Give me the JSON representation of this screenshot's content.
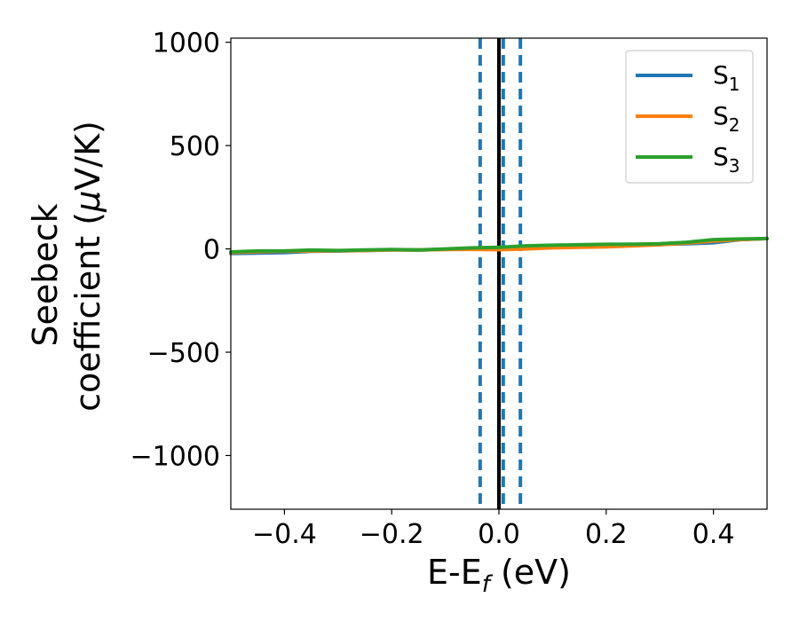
{
  "chart_data": {
    "type": "line",
    "xlabel": {
      "main": "E-E",
      "sub": "f",
      "rest": " (eV)"
    },
    "ylabel": {
      "line1": "Seebeck",
      "line2a": "coefficient  (",
      "mu": "μ",
      "line2b": "V/K)"
    },
    "xlim": [
      -0.5,
      0.5
    ],
    "ylim": [
      -1260,
      1020
    ],
    "xticks": [
      {
        "value": -0.4,
        "label": "−0.4"
      },
      {
        "value": -0.2,
        "label": "−0.2"
      },
      {
        "value": 0.0,
        "label": "0.0"
      },
      {
        "value": 0.2,
        "label": "0.2"
      },
      {
        "value": 0.4,
        "label": "0.4"
      }
    ],
    "yticks": [
      {
        "value": 1000,
        "label": "1000"
      },
      {
        "value": 500,
        "label": "500"
      },
      {
        "value": 0,
        "label": "0"
      },
      {
        "value": -500,
        "label": "−500"
      },
      {
        "value": -1000,
        "label": "−1000"
      }
    ],
    "x": [
      -0.5,
      -0.45,
      -0.4,
      -0.35,
      -0.3,
      -0.25,
      -0.2,
      -0.15,
      -0.1,
      -0.05,
      0.0,
      0.05,
      0.1,
      0.15,
      0.2,
      0.25,
      0.3,
      0.35,
      0.4,
      0.45,
      0.5
    ],
    "series": [
      {
        "name": "S",
        "sub": "1",
        "color": "#1f77b4",
        "values": [
          -22,
          -20,
          -18,
          -12,
          -10,
          -8,
          -4,
          -6,
          -2,
          0,
          2,
          10,
          14,
          16,
          18,
          20,
          22,
          25,
          30,
          45,
          50
        ]
      },
      {
        "name": "S",
        "sub": "2",
        "color": "#ff7f0e",
        "values": [
          -18,
          -14,
          -12,
          -10,
          -9,
          -8,
          -5,
          -5,
          -3,
          -2,
          -4,
          0,
          5,
          8,
          10,
          15,
          20,
          28,
          38,
          45,
          50
        ]
      },
      {
        "name": "S",
        "sub": "3",
        "color": "#2ca02c",
        "values": [
          -15,
          -10,
          -10,
          -6,
          -8,
          -5,
          -3,
          -5,
          0,
          5,
          8,
          15,
          18,
          20,
          22,
          23,
          25,
          32,
          45,
          48,
          50
        ]
      }
    ],
    "vlines": [
      {
        "x": -0.035,
        "style": "dashed",
        "color": "#1f77b4"
      },
      {
        "x": 0.0,
        "style": "solid",
        "color": "#000000"
      },
      {
        "x": 0.008,
        "style": "dashed",
        "color": "#1f77b4"
      },
      {
        "x": 0.04,
        "style": "dashed",
        "color": "#1f77b4"
      }
    ],
    "legend_position": "top-right",
    "grid": false
  }
}
